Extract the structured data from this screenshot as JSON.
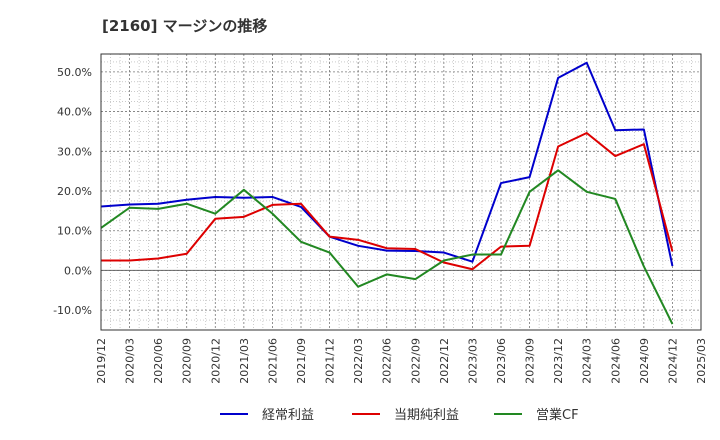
{
  "chart_data": {
    "type": "line",
    "title": "[2160]  マージンの推移",
    "xlabel": "",
    "ylabel": "",
    "ylim": [
      -15,
      54.5
    ],
    "yticks": [
      -10,
      0,
      10,
      20,
      30,
      40,
      50
    ],
    "ytick_labels": [
      "-10.0%",
      "0.0%",
      "10.0%",
      "20.0%",
      "30.0%",
      "40.0%",
      "50.0%"
    ],
    "x": [
      "2019/12",
      "2020/03",
      "2020/06",
      "2020/09",
      "2020/12",
      "2021/03",
      "2021/06",
      "2021/09",
      "2021/12",
      "2022/03",
      "2022/06",
      "2022/09",
      "2022/12",
      "2023/03",
      "2023/06",
      "2023/09",
      "2023/12",
      "2024/03",
      "2024/06",
      "2024/09",
      "2024/12",
      "2025/03"
    ],
    "grid": true,
    "legend_position": "bottom",
    "series": [
      {
        "name": "経常利益",
        "color": "#0000cc",
        "values": [
          16.1,
          16.6,
          16.8,
          17.8,
          18.5,
          18.3,
          18.5,
          16.0,
          8.5,
          6.2,
          5.0,
          4.9,
          4.5,
          2.2,
          22.0,
          23.5,
          48.5,
          52.3,
          35.3,
          35.5,
          1.1,
          null
        ]
      },
      {
        "name": "当期純利益",
        "color": "#dd0000",
        "values": [
          2.5,
          2.5,
          3.0,
          4.2,
          13.0,
          13.5,
          16.5,
          16.8,
          8.5,
          7.7,
          5.6,
          5.4,
          2.0,
          0.3,
          6.0,
          6.2,
          31.2,
          34.6,
          28.8,
          31.8,
          4.8,
          null
        ]
      },
      {
        "name": "営業CF",
        "color": "#228822",
        "values": [
          10.7,
          15.8,
          15.5,
          16.8,
          14.3,
          20.3,
          14.3,
          7.2,
          4.5,
          -4.1,
          -1.0,
          -2.2,
          2.5,
          4.0,
          4.0,
          19.8,
          25.2,
          19.8,
          18.0,
          1.0,
          -13.5,
          null
        ]
      }
    ]
  }
}
